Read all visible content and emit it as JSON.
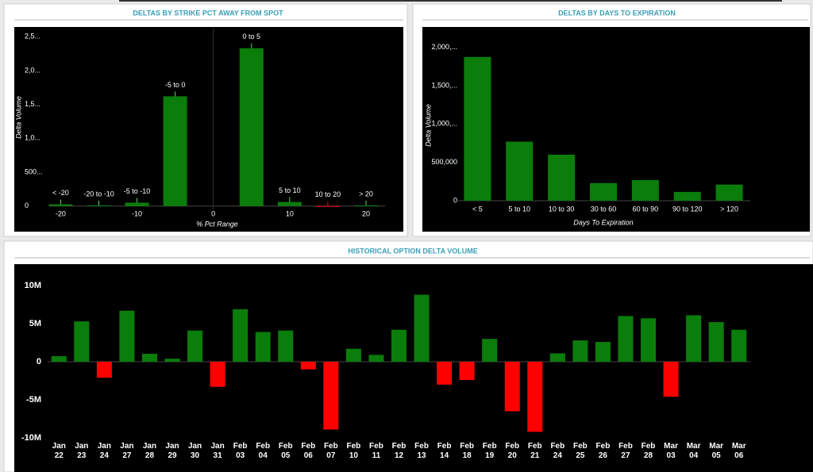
{
  "chart_data": [
    {
      "type": "bar",
      "title": "DELTAS BY STRIKE PCT AWAY FROM SPOT",
      "x_label": "% Pct Range",
      "y_label": "Delta Volume",
      "x": [
        -20,
        -15,
        -10,
        -5,
        5,
        10,
        15,
        20
      ],
      "bar_labels": [
        "< -20",
        "-20 to -10",
        "-5 to -10",
        "-5 to 0",
        "0 to 5",
        "5 to 10",
        "10 to 20",
        "> 20"
      ],
      "values": [
        25000,
        10000,
        50000,
        1620000,
        2330000,
        60000,
        -10000,
        10000
      ],
      "xlim": [
        -21.5,
        22.5
      ],
      "xticks": [
        -20,
        -10,
        0,
        10,
        20
      ],
      "ylim": [
        -50000,
        2620000
      ],
      "yticks": [
        0,
        {
          "value": 500000,
          "label": "500..."
        },
        {
          "value": 1000000,
          "label": "1,0..."
        },
        {
          "value": 1500000,
          "label": "1,5..."
        },
        {
          "value": 2000000,
          "label": "2,0..."
        },
        {
          "value": 2500000,
          "label": "2,5..."
        }
      ],
      "color": "#0b7d0b",
      "negative_color": "#ff0000"
    },
    {
      "type": "bar",
      "title": "DELTAS BY DAYS TO EXPIRATION",
      "x_label": "Days To Expiration",
      "y_label": "Delta Volume",
      "categories": [
        "< 5",
        "5 to 10",
        "10 to 30",
        "30 to 60",
        "60 to 90",
        "90 to 120",
        "> 120"
      ],
      "values": [
        1875000,
        770000,
        600000,
        230000,
        270000,
        115000,
        210000
      ],
      "ylim": [
        0,
        2100000
      ],
      "yticks": [
        0,
        {
          "value": 500000,
          "label": "500,000"
        },
        {
          "value": 1000000,
          "label": "1,000,..."
        },
        {
          "value": 1500000,
          "label": "1,500,..."
        },
        {
          "value": 2000000,
          "label": "2,000,..."
        }
      ],
      "color": "#0b7d0b",
      "negative_color": "#ff0000"
    },
    {
      "type": "bar",
      "title": "HISTORICAL OPTION DELTA VOLUME",
      "categories": [
        "Jan 22",
        "Jan 23",
        "Jan 24",
        "Jan 27",
        "Jan 28",
        "Jan 29",
        "Jan 30",
        "Jan 31",
        "Feb 03",
        "Feb 04",
        "Feb 05",
        "Feb 06",
        "Feb 07",
        "Feb 10",
        "Feb 11",
        "Feb 12",
        "Feb 13",
        "Feb 14",
        "Feb 18",
        "Feb 19",
        "Feb 20",
        "Feb 21",
        "Feb 24",
        "Feb 25",
        "Feb 26",
        "Feb 27",
        "Feb 28",
        "Mar 03",
        "Mar 04",
        "Mar 05",
        "Mar 06"
      ],
      "values": [
        730000,
        5300000,
        -2100000,
        6700000,
        1040000,
        400000,
        4100000,
        -3300000,
        6900000,
        3900000,
        4100000,
        -1000000,
        -8900000,
        1700000,
        900000,
        4200000,
        8800000,
        -3000000,
        -2400000,
        3000000,
        -6500000,
        -9200000,
        1100000,
        2800000,
        2600000,
        6000000,
        5700000,
        -4600000,
        6100000,
        5200000,
        4200000
      ],
      "ylim": [
        -10800000,
        12000000
      ],
      "yticks": [
        {
          "value": -10000000,
          "label": "-10M"
        },
        {
          "value": -5000000,
          "label": "-5M"
        },
        0,
        {
          "value": 5000000,
          "label": "5M"
        },
        {
          "value": 10000000,
          "label": "10M"
        }
      ],
      "color": "#0b7d0b",
      "negative_color": "#ff0000"
    }
  ]
}
